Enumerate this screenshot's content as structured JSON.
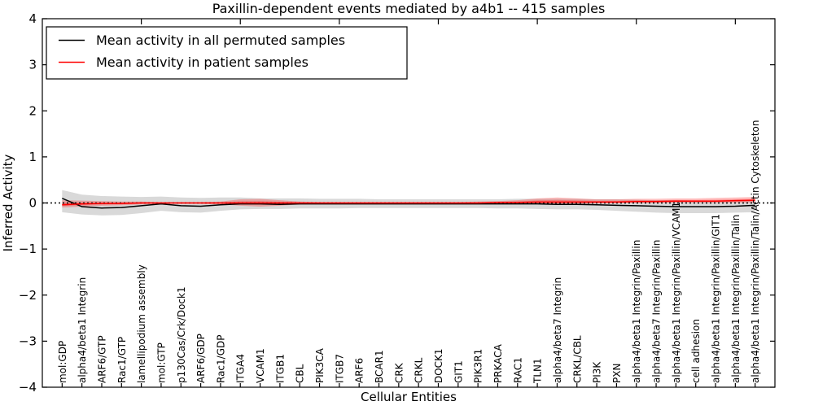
{
  "chart_data": {
    "type": "line",
    "title": "Paxillin-dependent events mediated by a4b1 -- 415 samples",
    "xlabel": "Cellular Entities",
    "ylabel": "Inferred Activity",
    "ylim": [
      -4,
      4
    ],
    "xlim": [
      0,
      37
    ],
    "grid": false,
    "legend_position": "upper left",
    "yticks": [
      -4,
      -3,
      -2,
      -1,
      0,
      1,
      2,
      3,
      4
    ],
    "ytick_labels": [
      "−4",
      "−3",
      "−2",
      "−1",
      "0",
      "1",
      "2",
      "3",
      "4"
    ],
    "top_axis_ticks_at": [
      5,
      10,
      15,
      20,
      25,
      30,
      35
    ],
    "zero_line": {
      "y": 0,
      "style": "dotted",
      "color": "#000000"
    },
    "categories": [
      "mol:GDP",
      "alpha4/beta1 Integrin",
      "ARF6/GTP",
      "Rac1/GTP",
      "lamellipodium assembly",
      "mol:GTP",
      "p130Cas/Crk/Dock1",
      "ARF6/GDP",
      "Rac1/GDP",
      "ITGA4",
      "VCAM1",
      "ITGB1",
      "CBL",
      "PIK3CA",
      "ITGB7",
      "ARF6",
      "BCAR1",
      "CRK",
      "CRKL",
      "DOCK1",
      "GIT1",
      "PIK3R1",
      "PRKACA",
      "RAC1",
      "TLN1",
      "alpha4/beta7 Integrin",
      "CRKL/CBL",
      "PI3K",
      "PXN",
      "alpha4/beta1 Integrin/Paxillin",
      "alpha4/beta7 Integrin/Paxillin",
      "alpha4/beta1 Integrin/Paxillin/VCAM1",
      "cell adhesion",
      "alpha4/beta1 Integrin/Paxillin/GIT1",
      "alpha4/beta1 Integrin/Paxillin/Talin",
      "alpha4/beta1 Integrin/Paxillin/Talin/Actin Cytoskeleton"
    ],
    "series": [
      {
        "name": "Mean activity in all permuted samples",
        "color": "#000000",
        "band_color": "rgba(120,120,120,0.28)",
        "values": [
          0.1,
          -0.08,
          -0.11,
          -0.1,
          -0.06,
          -0.02,
          -0.06,
          -0.07,
          -0.04,
          -0.02,
          -0.02,
          -0.03,
          -0.02,
          -0.02,
          -0.02,
          -0.02,
          -0.02,
          -0.02,
          -0.02,
          -0.02,
          -0.02,
          -0.02,
          -0.02,
          -0.02,
          -0.02,
          -0.03,
          -0.03,
          -0.04,
          -0.05,
          -0.06,
          -0.07,
          -0.08,
          -0.08,
          -0.08,
          -0.07,
          -0.05
        ],
        "band_upper": [
          0.28,
          0.18,
          0.15,
          0.14,
          0.13,
          0.14,
          0.12,
          0.11,
          0.12,
          0.12,
          0.1,
          0.1,
          0.1,
          0.09,
          0.09,
          0.09,
          0.08,
          0.08,
          0.08,
          0.08,
          0.08,
          0.08,
          0.08,
          0.09,
          0.09,
          0.09,
          0.09,
          0.08,
          0.08,
          0.07,
          0.06,
          0.06,
          0.05,
          0.05,
          0.05,
          0.05
        ],
        "band_lower": [
          -0.2,
          -0.25,
          -0.27,
          -0.26,
          -0.22,
          -0.17,
          -0.2,
          -0.21,
          -0.17,
          -0.14,
          -0.13,
          -0.13,
          -0.12,
          -0.12,
          -0.12,
          -0.11,
          -0.11,
          -0.11,
          -0.11,
          -0.11,
          -0.11,
          -0.11,
          -0.12,
          -0.12,
          -0.13,
          -0.14,
          -0.14,
          -0.15,
          -0.17,
          -0.19,
          -0.21,
          -0.22,
          -0.22,
          -0.22,
          -0.21,
          -0.2
        ]
      },
      {
        "name": "Mean activity in patient samples",
        "color": "#ff0000",
        "band_color": "rgba(255,0,0,0.25)",
        "values": [
          -0.04,
          -0.02,
          -0.01,
          -0.01,
          0.0,
          0.0,
          0.0,
          0.0,
          0.0,
          0.0,
          0.0,
          0.0,
          0.0,
          0.0,
          0.0,
          0.0,
          0.0,
          0.0,
          0.0,
          0.0,
          0.0,
          0.0,
          0.01,
          0.01,
          0.02,
          0.02,
          0.02,
          0.02,
          0.02,
          0.03,
          0.03,
          0.04,
          0.04,
          0.04,
          0.05,
          0.06
        ],
        "band_upper": [
          0.06,
          0.05,
          0.04,
          0.03,
          0.03,
          0.02,
          0.02,
          0.02,
          0.03,
          0.08,
          0.09,
          0.06,
          0.03,
          0.02,
          0.02,
          0.02,
          0.02,
          0.02,
          0.02,
          0.02,
          0.02,
          0.03,
          0.04,
          0.06,
          0.1,
          0.12,
          0.1,
          0.08,
          0.08,
          0.09,
          0.09,
          0.1,
          0.1,
          0.11,
          0.12,
          0.13
        ],
        "band_lower": [
          -0.1,
          -0.08,
          -0.06,
          -0.05,
          -0.03,
          -0.02,
          -0.02,
          -0.02,
          -0.03,
          -0.06,
          -0.08,
          -0.06,
          -0.03,
          -0.02,
          -0.01,
          -0.01,
          -0.01,
          -0.01,
          -0.01,
          -0.01,
          -0.01,
          -0.01,
          -0.01,
          -0.01,
          -0.02,
          -0.03,
          -0.02,
          -0.01,
          -0.01,
          0.0,
          0.0,
          0.0,
          0.0,
          0.0,
          0.0,
          0.01
        ]
      }
    ]
  }
}
